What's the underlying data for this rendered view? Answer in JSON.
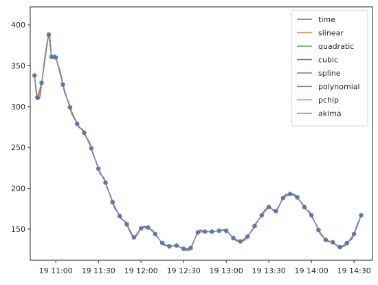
{
  "chart_data": {
    "type": "line",
    "title": "",
    "xlabel": "",
    "ylabel": "",
    "x_times": [
      "10:45",
      "10:50",
      "10:55",
      "11:00",
      "11:05",
      "11:10",
      "11:15",
      "11:20",
      "11:25",
      "11:30",
      "11:35",
      "11:40",
      "11:45",
      "11:50",
      "11:55",
      "12:00",
      "12:05",
      "12:10",
      "12:15",
      "12:20",
      "12:25",
      "12:30",
      "12:35",
      "12:40",
      "12:45",
      "12:50",
      "12:55",
      "13:00",
      "13:05",
      "13:10",
      "13:15",
      "13:20",
      "13:25",
      "13:30",
      "13:35",
      "13:40",
      "13:45",
      "13:50",
      "13:55",
      "14:00",
      "14:05",
      "14:10",
      "14:15",
      "14:20",
      "14:25",
      "14:30",
      "14:35"
    ],
    "x_tick_labels": [
      "19 11:00",
      "19 11:30",
      "19 12:00",
      "19 12:30",
      "19 13:00",
      "19 13:30",
      "19 14:00",
      "19 14:30"
    ],
    "x_tick_times": [
      "11:00",
      "11:30",
      "12:00",
      "12:30",
      "13:00",
      "13:30",
      "14:00",
      "14:30"
    ],
    "xlim": [
      "10:42",
      "14:43"
    ],
    "y_ticks": [
      150,
      200,
      250,
      300,
      350,
      400
    ],
    "ylim": [
      112,
      422
    ],
    "observed": [
      {
        "t": "10:45",
        "v": 338
      },
      {
        "t": "10:47",
        "v": 311
      },
      {
        "t": "10:50",
        "v": 329
      },
      {
        "t": "10:55",
        "v": 388
      },
      {
        "t": "10:57",
        "v": 361
      },
      {
        "t": "11:00",
        "v": 360
      },
      {
        "t": "11:05",
        "v": 327
      },
      {
        "t": "11:10",
        "v": 299
      },
      {
        "t": "11:15",
        "v": 279
      },
      {
        "t": "11:20",
        "v": 268
      },
      {
        "t": "11:25",
        "v": 249
      },
      {
        "t": "11:30",
        "v": 224
      },
      {
        "t": "11:35",
        "v": 207
      },
      {
        "t": "11:40",
        "v": 183
      },
      {
        "t": "11:45",
        "v": 166
      },
      {
        "t": "11:50",
        "v": 156
      },
      {
        "t": "11:55",
        "v": 140
      },
      {
        "t": "12:00",
        "v": 151
      },
      {
        "t": "12:05",
        "v": 152
      },
      {
        "t": "12:10",
        "v": 144
      },
      {
        "t": "12:15",
        "v": 133
      },
      {
        "t": "12:20",
        "v": 129
      },
      {
        "t": "12:25",
        "v": 130
      },
      {
        "t": "12:30",
        "v": 126
      },
      {
        "t": "12:35",
        "v": 127
      },
      {
        "t": "12:40",
        "v": 146
      },
      {
        "t": "12:45",
        "v": 147
      },
      {
        "t": "12:50",
        "v": 147
      },
      {
        "t": "12:55",
        "v": 148
      },
      {
        "t": "13:00",
        "v": 148
      },
      {
        "t": "13:05",
        "v": 139
      },
      {
        "t": "13:10",
        "v": 135
      },
      {
        "t": "13:15",
        "v": 141
      },
      {
        "t": "13:20",
        "v": 154
      },
      {
        "t": "13:25",
        "v": 167
      },
      {
        "t": "13:30",
        "v": 177
      },
      {
        "t": "13:35",
        "v": 172
      },
      {
        "t": "13:40",
        "v": 188
      },
      {
        "t": "13:45",
        "v": 193
      },
      {
        "t": "13:50",
        "v": 189
      },
      {
        "t": "13:55",
        "v": 177
      },
      {
        "t": "14:00",
        "v": 167
      },
      {
        "t": "14:05",
        "v": 149
      },
      {
        "t": "14:10",
        "v": 137
      },
      {
        "t": "14:15",
        "v": 134
      },
      {
        "t": "14:20",
        "v": 128
      },
      {
        "t": "14:25",
        "v": 133
      },
      {
        "t": "14:30",
        "v": 144
      },
      {
        "t": "14:35",
        "v": 167
      }
    ],
    "series": [
      {
        "name": "time",
        "color": "#4c72b0"
      },
      {
        "name": "slinear",
        "color": "#dd8452"
      },
      {
        "name": "quadratic",
        "color": "#55a868"
      },
      {
        "name": "cubic",
        "color": "#c44e52"
      },
      {
        "name": "spline",
        "color": "#8172b3"
      },
      {
        "name": "polynomial",
        "color": "#937860"
      },
      {
        "name": "pchip",
        "color": "#da8bc3"
      },
      {
        "name": "akima",
        "color": "#8c8c8c"
      }
    ],
    "marker_color": "#4c72b0",
    "grid": false,
    "legend_position": "upper-right"
  }
}
